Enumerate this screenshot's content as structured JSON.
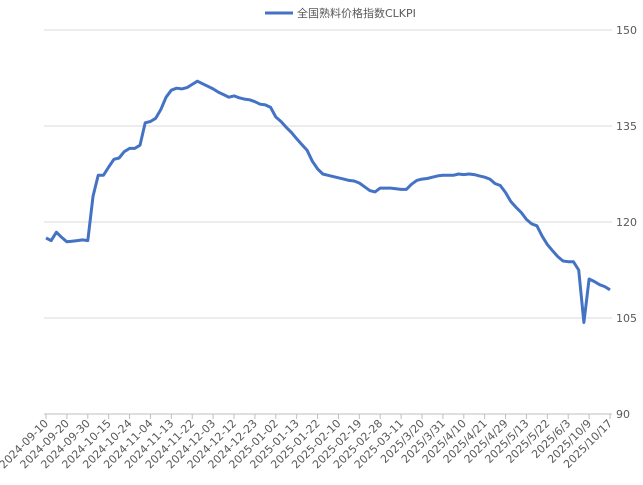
{
  "chart_data": {
    "type": "line",
    "categories": [
      "2024-09-10",
      null,
      null,
      null,
      "2024-09-20",
      null,
      null,
      null,
      "2024-09-30",
      null,
      null,
      null,
      "2024-10-15",
      null,
      null,
      null,
      "2024-10-24",
      null,
      null,
      null,
      "2024-11-04",
      null,
      null,
      null,
      "2024-11-13",
      null,
      null,
      null,
      "2024-11-22",
      null,
      null,
      null,
      "2024-12-03",
      null,
      null,
      null,
      "2024-12-12",
      null,
      null,
      null,
      "2024-12-23",
      null,
      null,
      null,
      "2025-01-02",
      null,
      null,
      null,
      "2025-01-13",
      null,
      null,
      null,
      "2025-01-22",
      null,
      null,
      null,
      "2025-02-10",
      null,
      null,
      null,
      "2025-02-19",
      null,
      null,
      null,
      "2025-02-28",
      null,
      null,
      null,
      "2025-03-11",
      null,
      null,
      null,
      "2025/3/20",
      null,
      null,
      null,
      "2025/3/31",
      null,
      null,
      null,
      "2025/4/10",
      null,
      null,
      null,
      "2025/4/21",
      null,
      null,
      null,
      "2025/4/29",
      null,
      null,
      null,
      "2025/5/13",
      null,
      null,
      null,
      "2025/5/22",
      null,
      null,
      null,
      "2025/6/3",
      null,
      null,
      null,
      "2025/10/9",
      null,
      null,
      null,
      "2025/10/17"
    ],
    "series": [
      {
        "name": "全国熟料价格指数CLKPI",
        "color": "#4472c4",
        "values": [
          117.5,
          117.1,
          118.4,
          117.6,
          116.9,
          117,
          117.1,
          117.2,
          117.1,
          124,
          127.3,
          127.3,
          128.6,
          129.8,
          130,
          131,
          131.5,
          131.5,
          132,
          135.5,
          135.7,
          136.2,
          137.6,
          139.5,
          140.6,
          140.9,
          140.8,
          141,
          141.5,
          142,
          141.6,
          141.2,
          140.8,
          140.3,
          139.9,
          139.5,
          139.7,
          139.4,
          139.2,
          139.1,
          138.8,
          138.4,
          138.3,
          137.9,
          136.4,
          135.7,
          134.8,
          134,
          133,
          132.1,
          131.2,
          129.5,
          128.3,
          127.5,
          127.3,
          127.1,
          126.9,
          126.7,
          126.5,
          126.4,
          126.1,
          125.5,
          124.9,
          124.7,
          125.3,
          125.3,
          125.3,
          125.2,
          125.1,
          125.1,
          125.9,
          126.5,
          126.7,
          126.8,
          127,
          127.2,
          127.3,
          127.3,
          127.3,
          127.5,
          127.4,
          127.5,
          127.4,
          127.2,
          127,
          126.7,
          126,
          125.7,
          124.6,
          123.2,
          122.3,
          121.5,
          120.4,
          119.7,
          119.4,
          117.8,
          116.5,
          115.5,
          114.6,
          113.9,
          113.8,
          113.8,
          112.5,
          104.3,
          111.1,
          110.7,
          110.2,
          109.9,
          109.4
        ]
      }
    ],
    "ylim": [
      90,
      150
    ],
    "yticks": [
      90,
      105,
      120,
      135,
      150
    ],
    "grid": true,
    "y_axis_side": "right",
    "legend": "top"
  }
}
